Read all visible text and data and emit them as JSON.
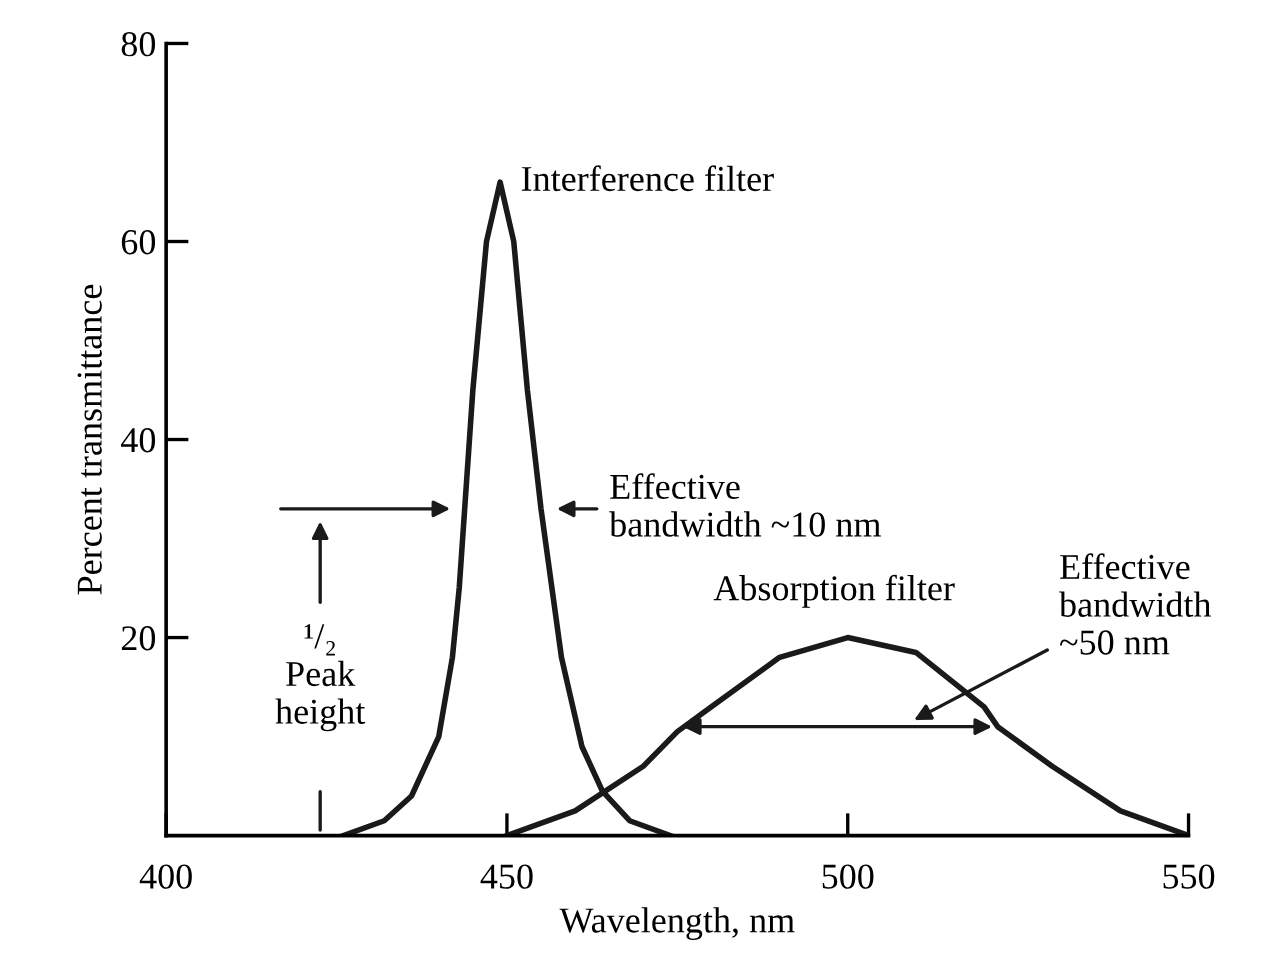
{
  "chart_data": {
    "type": "line",
    "xlabel": "Wavelength, nm",
    "ylabel": "Percent transmittance",
    "xlim": [
      400,
      550
    ],
    "ylim": [
      0,
      80
    ],
    "xticks": [
      400,
      450,
      500,
      550
    ],
    "yticks": [
      20,
      40,
      60,
      80
    ],
    "grid": false,
    "legend": false,
    "marker": "none",
    "line_style": "solid",
    "series": [
      {
        "name": "Interference filter",
        "color": "#1a1a1a",
        "x": [
          426,
          432,
          436,
          440,
          442,
          443,
          445,
          447,
          449,
          451,
          453,
          455,
          456,
          458,
          461,
          464,
          468,
          474
        ],
        "values": [
          0,
          1.5,
          4,
          10,
          18,
          25,
          45,
          60,
          66,
          60,
          45,
          33,
          28,
          18,
          9,
          4.5,
          1.5,
          0
        ]
      },
      {
        "name": "Absorption filter",
        "color": "#1a1a1a",
        "x": [
          450,
          460,
          470,
          475,
          480,
          490,
          500,
          510,
          520,
          522,
          530,
          540,
          550
        ],
        "values": [
          0,
          2.5,
          7,
          10.5,
          13,
          18,
          20,
          18.5,
          13,
          11,
          7,
          2.5,
          0
        ]
      }
    ],
    "annotations": [
      "Effective\nbandwidth ~10 nm",
      "¹/₂\nPeak\nheight",
      "Effective\nbandwidth\n~50 nm"
    ]
  }
}
